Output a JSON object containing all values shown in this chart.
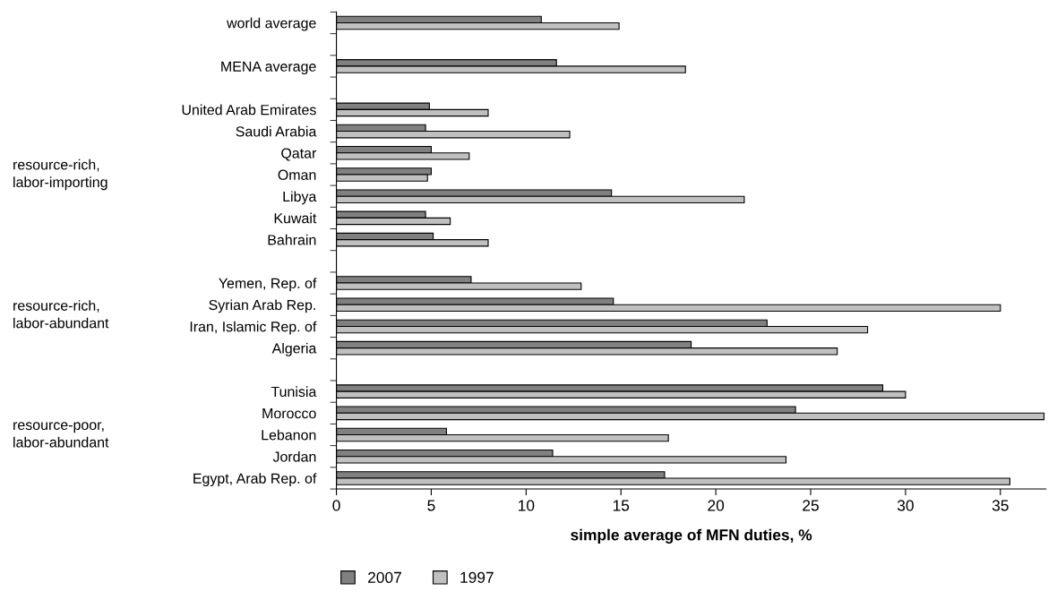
{
  "chart_data": {
    "type": "bar",
    "orientation": "horizontal",
    "categories": [
      "world average",
      null,
      "MENA average",
      null,
      "United Arab Emirates",
      "Saudi Arabia",
      "Qatar",
      "Oman",
      "Libya",
      "Kuwait",
      "Bahrain",
      null,
      "Yemen, Rep. of",
      "Syrian Arab Rep.",
      "Iran, Islamic Rep. of",
      "Algeria",
      null,
      "Tunisia",
      "Morocco",
      "Lebanon",
      "Jordan",
      "Egypt, Arab Rep. of"
    ],
    "series": [
      {
        "name": "2007",
        "color": "#808080",
        "values": [
          10.8,
          null,
          11.6,
          null,
          4.9,
          4.7,
          5.0,
          5.0,
          14.5,
          4.7,
          5.1,
          null,
          7.1,
          14.6,
          22.7,
          18.7,
          null,
          28.8,
          24.2,
          5.8,
          11.4,
          17.3
        ]
      },
      {
        "name": "1997",
        "color": "#c0c0c0",
        "values": [
          14.9,
          null,
          18.4,
          null,
          8.0,
          12.3,
          7.0,
          4.8,
          21.5,
          6.0,
          8.0,
          null,
          12.9,
          35.0,
          28.0,
          26.4,
          null,
          30.0,
          37.3,
          17.5,
          23.7,
          35.5
        ]
      }
    ],
    "xlim": [
      0,
      37.4
    ],
    "xticks": [
      0,
      5,
      10,
      15,
      20,
      25,
      30,
      35
    ],
    "xlabel": "simple average of MFN duties, %",
    "annotations": [
      "resource-rich,\nlabor-importing",
      "resource-rich,\nlabor-abundant",
      "resource-poor,\nlabor-abundant"
    ],
    "legend": "bottom left",
    "grid": false
  }
}
